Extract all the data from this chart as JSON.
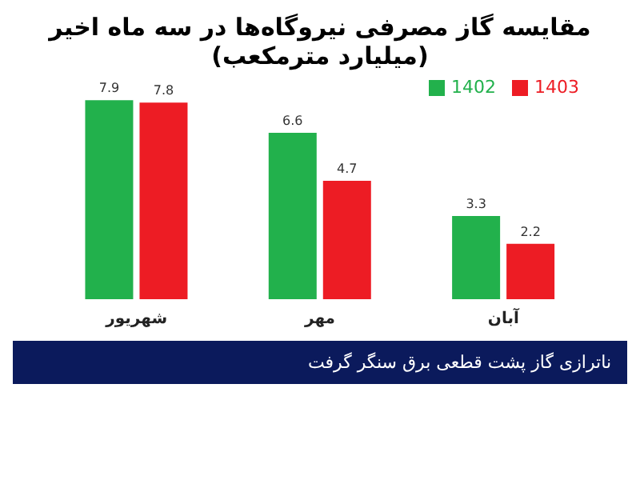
{
  "chart_data": {
    "type": "bar",
    "title": "مقایسه گاز مصرفی نیروگاه‌ها در سه ماه اخیر",
    "subtitle": "(میلیارد مترمکعب)",
    "categories": [
      "شهریور",
      "مهر",
      "آبان"
    ],
    "series": [
      {
        "name": "1402",
        "color": "#22b14c",
        "values": [
          7.9,
          6.6,
          3.3
        ]
      },
      {
        "name": "1403",
        "color": "#ed1c24",
        "values": [
          7.8,
          4.7,
          2.2
        ]
      }
    ],
    "data_labels": true,
    "legend": "top right",
    "grid": false,
    "annotations": [
      "ناترازی گاز پشت قطعی برق سنگر گرفت"
    ]
  }
}
